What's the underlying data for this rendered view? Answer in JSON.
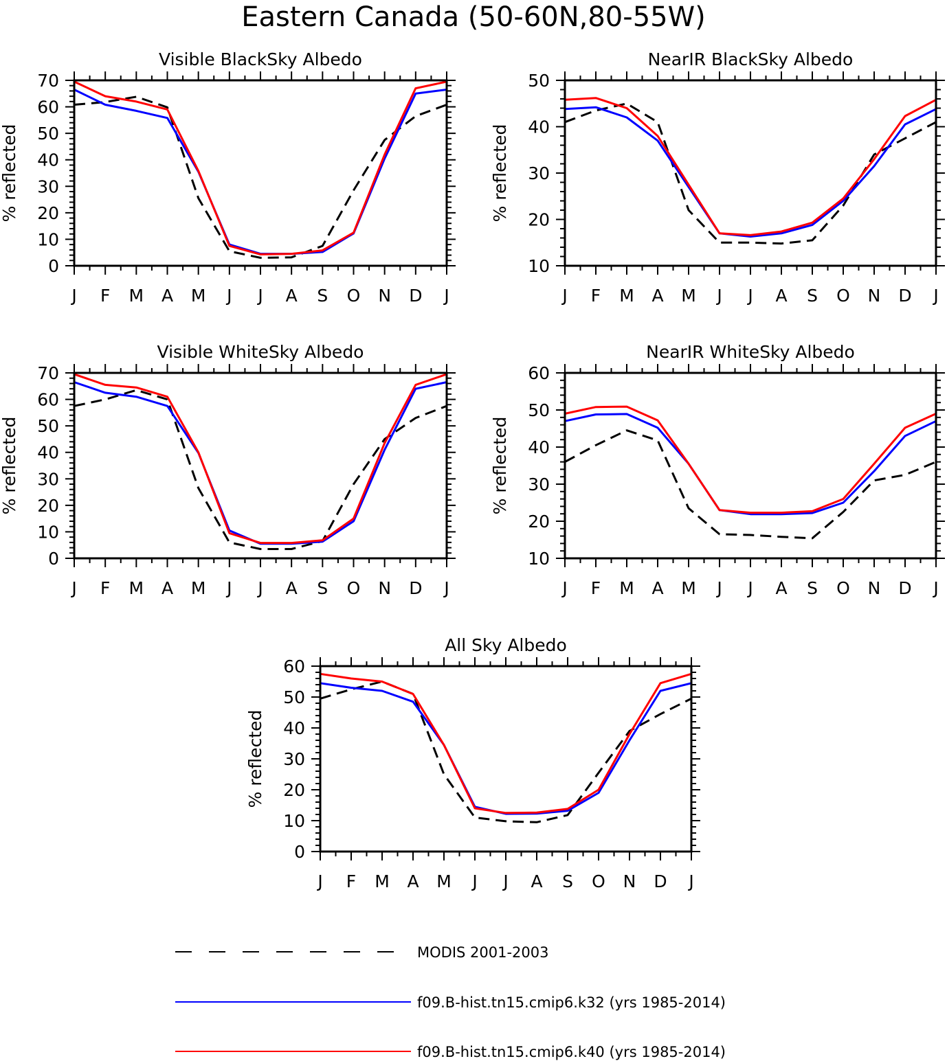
{
  "figure": {
    "title": "Eastern Canada (50-60N,80-55W)"
  },
  "legend": [
    {
      "key": "modis",
      "label": "MODIS 2001-2003",
      "color": "#000000",
      "dashed": true
    },
    {
      "key": "k32",
      "label": "f09.B-hist.tn15.cmip6.k32 (yrs 1985-2014)",
      "color": "#0000ff",
      "dashed": false
    },
    {
      "key": "k40",
      "label": "f09.B-hist.tn15.cmip6.k40 (yrs 1985-2014)",
      "color": "#ff0000",
      "dashed": false
    }
  ],
  "chart_data": [
    {
      "type": "line",
      "title": "Visible BlackSky Albedo",
      "ylabel": "% reflected",
      "xlabel": "",
      "categories": [
        "J",
        "F",
        "M",
        "A",
        "M",
        "J",
        "J",
        "A",
        "S",
        "O",
        "N",
        "D",
        "J"
      ],
      "ylim": [
        0,
        70
      ],
      "yticks": [
        0,
        10,
        20,
        30,
        40,
        50,
        60,
        70
      ],
      "series": [
        {
          "name": "MODIS 2001-2003",
          "color": "#000000",
          "dashed": true,
          "values": [
            60.8,
            61.8,
            63.8,
            59.8,
            25.5,
            5.5,
            3.0,
            3.2,
            7.5,
            28.5,
            47.5,
            56.5,
            60.8
          ]
        },
        {
          "name": "f09.B-hist.tn15.cmip6.k32 (yrs 1985-2014)",
          "color": "#0000ff",
          "dashed": false,
          "values": [
            66.5,
            60.8,
            58.5,
            55.8,
            35.5,
            8.0,
            4.5,
            4.5,
            5.2,
            12.2,
            40.5,
            65.0,
            66.5
          ]
        },
        {
          "name": "f09.B-hist.tn15.cmip6.k40 (yrs 1985-2014)",
          "color": "#ff0000",
          "dashed": false,
          "values": [
            69.5,
            64.0,
            62.0,
            59.0,
            35.8,
            7.5,
            4.3,
            4.5,
            5.8,
            12.5,
            42.0,
            67.0,
            69.5
          ]
        }
      ]
    },
    {
      "type": "line",
      "title": "NearIR BlackSky Albedo",
      "ylabel": "% reflected",
      "xlabel": "",
      "categories": [
        "J",
        "F",
        "M",
        "A",
        "M",
        "J",
        "J",
        "A",
        "S",
        "O",
        "N",
        "D",
        "J"
      ],
      "ylim": [
        10,
        50
      ],
      "yticks": [
        10,
        20,
        30,
        40,
        50
      ],
      "series": [
        {
          "name": "MODIS 2001-2003",
          "color": "#000000",
          "dashed": true,
          "values": [
            41.0,
            43.5,
            45.0,
            41.0,
            22.0,
            15.0,
            15.0,
            14.8,
            15.5,
            23.0,
            34.0,
            37.5,
            41.0
          ]
        },
        {
          "name": "f09.B-hist.tn15.cmip6.k32 (yrs 1985-2014)",
          "color": "#0000ff",
          "dashed": false,
          "values": [
            43.8,
            44.2,
            42.0,
            37.0,
            27.0,
            17.0,
            16.3,
            17.0,
            18.8,
            24.0,
            31.5,
            40.5,
            43.8
          ]
        },
        {
          "name": "f09.B-hist.tn15.cmip6.k40 (yrs 1985-2014)",
          "color": "#ff0000",
          "dashed": false,
          "values": [
            45.8,
            46.2,
            44.0,
            38.0,
            27.5,
            17.0,
            16.6,
            17.4,
            19.3,
            24.5,
            33.0,
            42.3,
            45.8
          ]
        }
      ]
    },
    {
      "type": "line",
      "title": "Visible WhiteSky Albedo",
      "ylabel": "% reflected",
      "xlabel": "",
      "categories": [
        "J",
        "F",
        "M",
        "A",
        "M",
        "J",
        "J",
        "A",
        "S",
        "O",
        "N",
        "D",
        "J"
      ],
      "ylim": [
        0,
        70
      ],
      "yticks": [
        0,
        10,
        20,
        30,
        40,
        50,
        60,
        70
      ],
      "series": [
        {
          "name": "MODIS 2001-2003",
          "color": "#000000",
          "dashed": true,
          "values": [
            57.5,
            60.0,
            63.5,
            60.0,
            26.5,
            6.0,
            3.5,
            3.5,
            6.5,
            28.0,
            45.0,
            53.0,
            57.5
          ]
        },
        {
          "name": "f09.B-hist.tn15.cmip6.k32 (yrs 1985-2014)",
          "color": "#0000ff",
          "dashed": false,
          "values": [
            66.5,
            62.5,
            61.0,
            57.5,
            39.8,
            10.5,
            5.5,
            5.5,
            6.3,
            14.0,
            41.0,
            64.0,
            66.5
          ]
        },
        {
          "name": "f09.B-hist.tn15.cmip6.k40 (yrs 1985-2014)",
          "color": "#ff0000",
          "dashed": false,
          "values": [
            69.5,
            65.5,
            64.5,
            61.0,
            40.0,
            9.5,
            5.8,
            5.8,
            6.8,
            15.0,
            43.5,
            65.5,
            69.5
          ]
        }
      ]
    },
    {
      "type": "line",
      "title": "NearIR WhiteSky Albedo",
      "ylabel": "% reflected",
      "xlabel": "",
      "categories": [
        "J",
        "F",
        "M",
        "A",
        "M",
        "J",
        "J",
        "A",
        "S",
        "O",
        "N",
        "D",
        "J"
      ],
      "ylim": [
        10,
        60
      ],
      "yticks": [
        10,
        20,
        30,
        40,
        50,
        60
      ],
      "series": [
        {
          "name": "MODIS 2001-2003",
          "color": "#000000",
          "dashed": true,
          "values": [
            36.0,
            40.5,
            44.5,
            41.8,
            23.5,
            16.5,
            16.3,
            15.8,
            15.4,
            22.5,
            31.0,
            32.5,
            36.0
          ]
        },
        {
          "name": "f09.B-hist.tn15.cmip6.k32 (yrs 1985-2014)",
          "color": "#0000ff",
          "dashed": false,
          "values": [
            47.0,
            48.8,
            48.9,
            45.2,
            35.5,
            23.0,
            21.9,
            21.9,
            22.2,
            25.0,
            33.5,
            43.0,
            47.0
          ]
        },
        {
          "name": "f09.B-hist.tn15.cmip6.k40 (yrs 1985-2014)",
          "color": "#ff0000",
          "dashed": false,
          "values": [
            49.0,
            50.8,
            50.9,
            47.2,
            35.5,
            23.0,
            22.3,
            22.3,
            22.7,
            26.0,
            35.5,
            45.2,
            49.0
          ]
        }
      ]
    },
    {
      "type": "line",
      "title": "All Sky Albedo",
      "ylabel": "% reflected",
      "xlabel": "",
      "categories": [
        "J",
        "F",
        "M",
        "A",
        "M",
        "J",
        "J",
        "A",
        "S",
        "O",
        "N",
        "D",
        "J"
      ],
      "ylim": [
        0,
        60
      ],
      "yticks": [
        0,
        10,
        20,
        30,
        40,
        50,
        60
      ],
      "series": [
        {
          "name": "MODIS 2001-2003",
          "color": "#000000",
          "dashed": true,
          "values": [
            49.5,
            52.5,
            55.0,
            51.0,
            25.0,
            11.0,
            9.8,
            9.5,
            11.8,
            25.5,
            39.0,
            44.5,
            49.5
          ]
        },
        {
          "name": "f09.B-hist.tn15.cmip6.k32 (yrs 1985-2014)",
          "color": "#0000ff",
          "dashed": false,
          "values": [
            54.5,
            53.0,
            52.0,
            48.5,
            34.5,
            14.5,
            12.2,
            12.3,
            13.2,
            19.0,
            36.0,
            52.0,
            54.5
          ]
        },
        {
          "name": "f09.B-hist.tn15.cmip6.k40 (yrs 1985-2014)",
          "color": "#ff0000",
          "dashed": false,
          "values": [
            57.5,
            56.0,
            55.0,
            51.0,
            34.5,
            14.0,
            12.5,
            12.6,
            13.8,
            20.0,
            38.0,
            54.5,
            57.5
          ]
        }
      ]
    }
  ]
}
